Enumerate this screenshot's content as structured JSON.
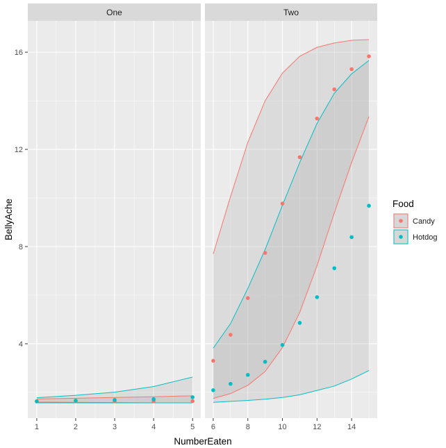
{
  "chart_data": {
    "type": "line",
    "xlabel": "NumberEaten",
    "ylabel": "BellyAche",
    "ylim": [
      0.94,
      17.29
    ],
    "yticks": [
      4,
      8,
      12,
      16
    ],
    "legend": {
      "title": "Food",
      "placement": "right",
      "entries": [
        {
          "name": "Candy",
          "color": "#F8766D"
        },
        {
          "name": "Hotdog",
          "color": "#00BFC4"
        }
      ]
    },
    "panels": [
      {
        "title": "One",
        "xlim": [
          0.77,
          5.21
        ],
        "xticks": [
          1,
          2,
          3,
          4,
          5
        ],
        "x": [
          1,
          2,
          3,
          4,
          5
        ],
        "series": [
          {
            "name": "Candy",
            "color": "#F8766D",
            "points": [
              1.63,
              1.63,
              1.63,
              1.63,
              1.64
            ],
            "upper": [
              1.73,
              1.76,
              1.79,
              1.82,
              1.86
            ],
            "lower": [
              1.6,
              1.59,
              1.58,
              1.57,
              1.57
            ]
          },
          {
            "name": "Hotdog",
            "color": "#00BFC4",
            "points": [
              1.63,
              1.66,
              1.69,
              1.72,
              1.8
            ],
            "upper": [
              1.78,
              1.88,
              2.01,
              2.24,
              2.63
            ],
            "lower": [
              1.57,
              1.57,
              1.57,
              1.57,
              1.57
            ]
          }
        ]
      },
      {
        "title": "Two",
        "xlim": [
          5.52,
          15.48
        ],
        "xticks": [
          6,
          8,
          10,
          12,
          14
        ],
        "x": [
          6,
          7,
          8,
          9,
          10,
          11,
          12,
          13,
          14,
          15
        ],
        "series": [
          {
            "name": "Candy",
            "color": "#F8766D",
            "points": [
              3.3,
              4.37,
              5.88,
              7.74,
              9.77,
              11.68,
              13.27,
              14.47,
              15.3,
              15.83
            ],
            "upper": [
              7.7,
              10.06,
              12.29,
              14.0,
              15.14,
              15.83,
              16.2,
              16.38,
              16.49,
              16.52
            ],
            "lower": [
              1.75,
              1.95,
              2.29,
              2.86,
              3.84,
              5.29,
              7.21,
              9.39,
              11.46,
              13.35
            ]
          },
          {
            "name": "Hotdog",
            "color": "#00BFC4",
            "points": [
              2.09,
              2.35,
              2.72,
              3.26,
              3.95,
              4.86,
              5.92,
              7.11,
              8.39,
              9.68
            ],
            "upper": [
              3.82,
              4.83,
              6.28,
              7.88,
              9.7,
              11.46,
              13.07,
              14.31,
              15.11,
              15.66
            ],
            "lower": [
              1.59,
              1.63,
              1.67,
              1.72,
              1.79,
              1.9,
              2.08,
              2.26,
              2.55,
              2.9
            ]
          }
        ]
      }
    ]
  }
}
